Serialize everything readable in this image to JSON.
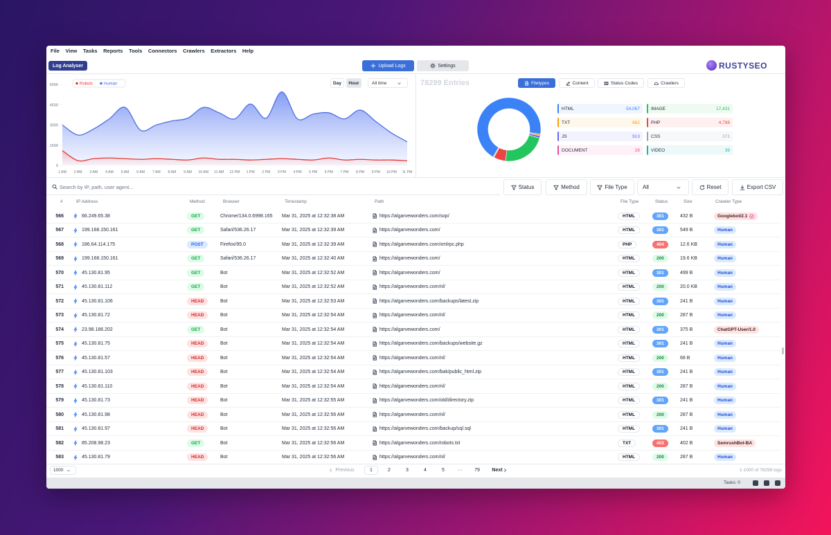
{
  "menu": [
    "File",
    "View",
    "Tasks",
    "Reports",
    "Tools",
    "Connectors",
    "Crawlers",
    "Extractors",
    "Help"
  ],
  "toolbar": {
    "tab": "Log Analyser",
    "upload": "Upload Logs",
    "settings": "Settings",
    "logo": "RUSTYSEO"
  },
  "chart_data": [
    {
      "type": "area",
      "categories": [
        "1 AM",
        "2 AM",
        "3 AM",
        "4 AM",
        "5 AM",
        "6 AM",
        "7 AM",
        "8 AM",
        "9 AM",
        "10 AM",
        "11 AM",
        "12 PM",
        "1 PM",
        "2 PM",
        "3 PM",
        "4 PM",
        "5 PM",
        "6 PM",
        "7 PM",
        "8 PM",
        "9 PM",
        "10 PM",
        "11 PM"
      ],
      "series": [
        {
          "name": "Robots",
          "color": "#e53935",
          "values": [
            1100,
            350,
            500,
            550,
            500,
            450,
            500,
            450,
            400,
            550,
            450,
            450,
            400,
            450,
            500,
            450,
            400,
            550,
            400,
            450,
            400,
            400,
            350
          ]
        },
        {
          "name": "Human",
          "color": "#4f6ee0",
          "values": [
            3000,
            2250,
            2700,
            3450,
            4300,
            2600,
            3000,
            3300,
            3500,
            4300,
            3900,
            3450,
            4550,
            3500,
            5450,
            3450,
            3800,
            3900,
            3450,
            4100,
            3250,
            2400,
            1750
          ]
        }
      ],
      "ylim": [
        0,
        6000
      ],
      "yticks": [
        0,
        1500,
        3000,
        4500,
        6000
      ],
      "legend": "top-left"
    },
    {
      "type": "pie",
      "title": "78299 Entries",
      "categories": [
        "HTML",
        "TXT",
        "JS",
        "DOCUMENT",
        "IMAGE",
        "PHP",
        "CSS",
        "VIDEO"
      ],
      "values": [
        54067,
        662,
        913,
        28,
        17431,
        4788,
        371,
        39
      ],
      "value_labels": [
        "54,067",
        "662",
        "913",
        "28",
        "17,431",
        "4,788",
        "371",
        "39"
      ],
      "colors": [
        "#3b82f6",
        "#f59e0b",
        "#6366f1",
        "#ec4899",
        "#22c55e",
        "#ef4444",
        "#9ca3af",
        "#14b8a6"
      ]
    }
  ],
  "chart_controls": [
    "Day",
    "Hour",
    "All time"
  ],
  "panel_tabs": [
    "Filetypes",
    "Content",
    "Status Codes",
    "Crawlers"
  ],
  "filters": {
    "search": "Search by IP, path, user agent...",
    "buttons": [
      "Status",
      "Method",
      "File Type"
    ],
    "select": "All",
    "reset": "Reset",
    "export": "Export CSV"
  },
  "table": {
    "columns": [
      "#",
      "IP Address",
      "Method",
      "Browser",
      "Timestamp",
      "Path",
      "File Type",
      "Status",
      "Size",
      "Crawler Type"
    ],
    "rows": [
      [
        "566",
        "66.249.65.38",
        "GET",
        "Chrome/134.0.6998.165",
        "Mar 31, 2025 at 12:32:38 AM",
        "https://algarvewonders.com/sop/",
        "HTML",
        "301",
        "432 B",
        "Googlebot/2.1"
      ],
      [
        "567",
        "199.168.150.161",
        "GET",
        "Safari/536.26.17",
        "Mar 31, 2025 at 12:32:39 AM",
        "https://algarvewonders.com/",
        "HTML",
        "301",
        "549 B",
        "Human"
      ],
      [
        "568",
        "186.64.114.175",
        "POST",
        "Firefox/95.0",
        "Mar 31, 2025 at 12:32:39 AM",
        "https://algarvewonders.com/xmlrpc.php",
        "PHP",
        "404",
        "12.6 KB",
        "Human"
      ],
      [
        "569",
        "199.168.150.161",
        "GET",
        "Safari/536.26.17",
        "Mar 31, 2025 at 12:32:40 AM",
        "https://algarvewonders.com/",
        "HTML",
        "200",
        "19.6 KB",
        "Human"
      ],
      [
        "570",
        "45.130.81.95",
        "GET",
        "Bot",
        "Mar 31, 2025 at 12:32:52 AM",
        "https://algarvewonders.com/",
        "HTML",
        "301",
        "499 B",
        "Human"
      ],
      [
        "571",
        "45.130.81.112",
        "GET",
        "Bot",
        "Mar 31, 2025 at 12:32:52 AM",
        "https://algarvewonders.com/nl/",
        "HTML",
        "200",
        "20.0 KB",
        "Human"
      ],
      [
        "572",
        "45.130.81.106",
        "HEAD",
        "Bot",
        "Mar 31, 2025 at 12:32:53 AM",
        "https://algarvewonders.com/backups/latest.zip",
        "HTML",
        "301",
        "241 B",
        "Human"
      ],
      [
        "573",
        "45.130.81.72",
        "HEAD",
        "Bot",
        "Mar 31, 2025 at 12:32:54 AM",
        "https://algarvewonders.com/nl/",
        "HTML",
        "200",
        "287 B",
        "Human"
      ],
      [
        "574",
        "23.98.186.202",
        "GET",
        "Bot",
        "Mar 31, 2025 at 12:32:54 AM",
        "https://algarvewonders.com/",
        "HTML",
        "301",
        "375 B",
        "ChatGPT-User/1.0"
      ],
      [
        "575",
        "45.130.81.75",
        "HEAD",
        "Bot",
        "Mar 31, 2025 at 12:32:54 AM",
        "https://algarvewonders.com/backups/website.gz",
        "HTML",
        "301",
        "241 B",
        "Human"
      ],
      [
        "576",
        "45.130.81.57",
        "HEAD",
        "Bot",
        "Mar 31, 2025 at 12:32:54 AM",
        "https://algarvewonders.com/nl/",
        "HTML",
        "200",
        "68 B",
        "Human"
      ],
      [
        "577",
        "45.130.81.103",
        "HEAD",
        "Bot",
        "Mar 31, 2025 at 12:32:54 AM",
        "https://algarvewonders.com/bak/public_html.zip",
        "HTML",
        "301",
        "241 B",
        "Human"
      ],
      [
        "578",
        "45.130.81.110",
        "HEAD",
        "Bot",
        "Mar 31, 2025 at 12:32:54 AM",
        "https://algarvewonders.com/nl/",
        "HTML",
        "200",
        "287 B",
        "Human"
      ],
      [
        "579",
        "45.130.81.73",
        "HEAD",
        "Bot",
        "Mar 31, 2025 at 12:32:55 AM",
        "https://algarvewonders.com/old/directory.zip",
        "HTML",
        "301",
        "241 B",
        "Human"
      ],
      [
        "580",
        "45.130.81.98",
        "HEAD",
        "Bot",
        "Mar 31, 2025 at 12:32:56 AM",
        "https://algarvewonders.com/nl/",
        "HTML",
        "200",
        "287 B",
        "Human"
      ],
      [
        "581",
        "45.130.81.97",
        "HEAD",
        "Bot",
        "Mar 31, 2025 at 12:32:56 AM",
        "https://algarvewonders.com/backup/sql.sql",
        "HTML",
        "301",
        "241 B",
        "Human"
      ],
      [
        "582",
        "85.208.98.23",
        "GET",
        "Bot",
        "Mar 31, 2025 at 12:32:56 AM",
        "https://algarvewonders.com/robots.txt",
        "TXT",
        "403",
        "402 B",
        "SemrushBot-BA"
      ],
      [
        "583",
        "45.130.81.79",
        "HEAD",
        "Bot",
        "Mar 31, 2025 at 12:32:56 AM",
        "https://algarvewonders.com/nl/",
        "HTML",
        "200",
        "287 B",
        "Human"
      ]
    ]
  },
  "pagination": {
    "per_page": "1000",
    "previous": "Previous",
    "pages": [
      "1",
      "2",
      "3",
      "4",
      "5",
      "···",
      "79"
    ],
    "next": "Next",
    "summary": "1-1000 of 78299 logs"
  },
  "statusbar": {
    "tasks": "Tasks: 0"
  }
}
